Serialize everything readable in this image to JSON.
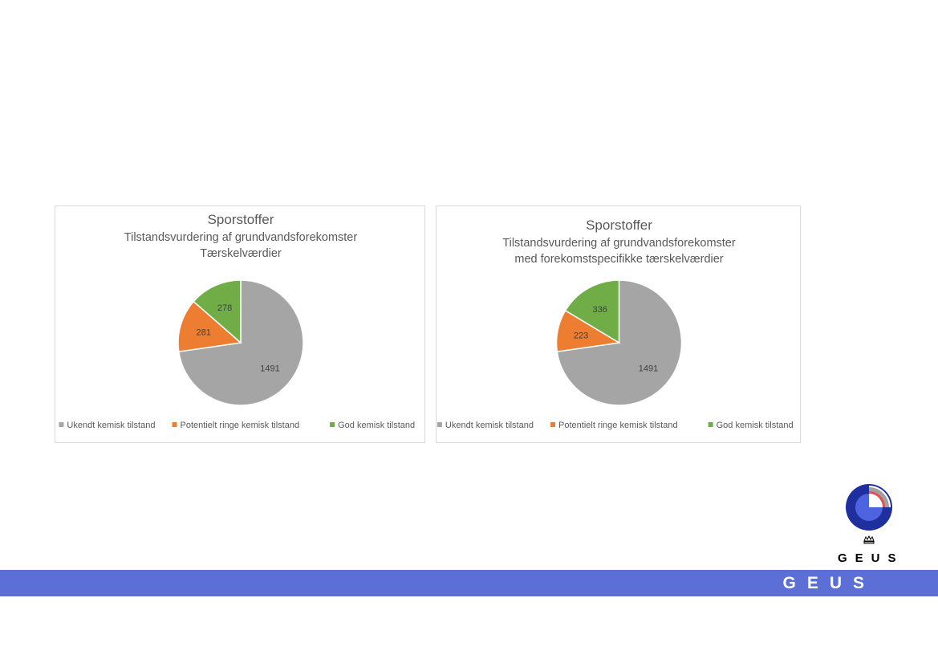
{
  "chart_data": [
    {
      "type": "pie",
      "title": "Sporstoffer",
      "subtitle": [
        "Tilstandsvurdering af grundvandsforekomster",
        "Tærskelværdier"
      ],
      "categories": [
        "Ukendt kemisk tilstand",
        "Potentielt ringe kemisk tilstand",
        "God kemisk tilstand"
      ],
      "values": [
        1491,
        281,
        278
      ],
      "colors": [
        "#a5a5a5",
        "#ed7d31",
        "#70ad47"
      ],
      "legend": "bottom"
    },
    {
      "type": "pie",
      "title": "Sporstoffer",
      "subtitle": [
        "Tilstandsvurdering af grundvandsforekomster",
        "med forekomstspecifikke tærskelværdier"
      ],
      "categories": [
        "Ukendt kemisk tilstand",
        "Potentielt ringe kemisk tilstand",
        "God kemisk tilstand"
      ],
      "values": [
        1491,
        223,
        336
      ],
      "colors": [
        "#a5a5a5",
        "#ed7d31",
        "#70ad47"
      ],
      "legend": "bottom"
    }
  ],
  "logo": {
    "crest_text": "GEUS",
    "icon": "crown-icon"
  },
  "footer": {
    "brand": "GEUS",
    "band_color": "#5b6fd6"
  }
}
